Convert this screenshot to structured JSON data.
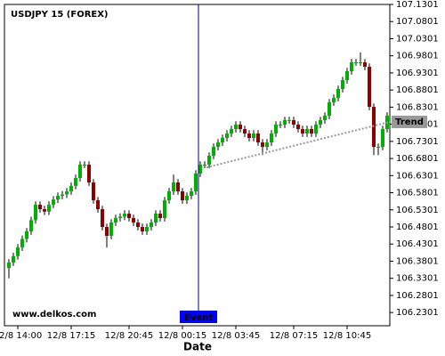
{
  "chart_data": {
    "type": "candlestick",
    "title": "USDJPY 15 (FOREX)",
    "source": "www.delkos.com",
    "x_label": "Date",
    "categories": [
      null,
      null,
      "12/8 14:00",
      null,
      null,
      null,
      null,
      null,
      null,
      null,
      null,
      null,
      null,
      null,
      "12/8 17:15",
      null,
      null,
      null,
      null,
      null,
      null,
      null,
      null,
      null,
      null,
      null,
      null,
      "12/8 20:45",
      null,
      null,
      null,
      null,
      null,
      null,
      null,
      null,
      null,
      null,
      null,
      "12/8 00:15",
      null,
      null,
      null,
      null,
      null,
      null,
      null,
      null,
      null,
      null,
      null,
      "12/8 03:45",
      null,
      null,
      null,
      null,
      null,
      null,
      null,
      null,
      null,
      null,
      null,
      null,
      "12/8 07:15",
      null,
      null,
      null,
      null,
      null,
      null,
      null,
      null,
      null,
      null,
      null,
      "12/8 10:45",
      null,
      null,
      null,
      null,
      null,
      null,
      null,
      null,
      null
    ],
    "open": [
      106.36,
      106.376,
      106.395,
      106.42,
      106.445,
      106.467,
      106.5,
      106.545,
      106.532,
      106.525,
      106.545,
      106.56,
      106.571,
      106.575,
      106.584,
      106.6,
      106.623,
      106.662,
      106.662,
      106.61,
      106.558,
      106.532,
      106.48,
      106.454,
      106.493,
      106.506,
      106.51,
      106.519,
      106.506,
      106.493,
      106.48,
      106.467,
      106.48,
      106.493,
      106.519,
      106.506,
      106.558,
      106.584,
      106.61,
      106.584,
      106.558,
      106.571,
      106.584,
      106.636,
      106.662,
      106.662,
      106.688,
      106.714,
      106.727,
      106.74,
      106.753,
      106.766,
      106.779,
      106.766,
      106.753,
      106.74,
      106.753,
      106.727,
      106.714,
      106.727,
      106.753,
      106.779,
      106.779,
      106.792,
      106.792,
      106.779,
      106.766,
      106.753,
      106.766,
      106.753,
      106.779,
      106.792,
      106.805,
      106.844,
      106.857,
      106.883,
      106.909,
      106.935,
      106.961,
      106.961,
      106.961,
      106.948,
      106.831,
      106.714,
      106.714,
      106.766
    ],
    "high": [
      106.386,
      106.405,
      106.43,
      106.455,
      106.477,
      106.51,
      106.555,
      106.555,
      106.542,
      106.555,
      106.57,
      106.581,
      106.585,
      106.594,
      106.61,
      106.633,
      106.672,
      106.672,
      106.672,
      106.62,
      106.568,
      106.542,
      106.49,
      106.503,
      106.516,
      106.52,
      106.529,
      106.529,
      106.516,
      106.503,
      106.49,
      106.49,
      106.503,
      106.529,
      106.529,
      106.568,
      106.594,
      106.633,
      106.62,
      106.594,
      106.581,
      106.594,
      106.646,
      106.672,
      106.672,
      106.698,
      106.724,
      106.737,
      106.75,
      106.763,
      106.776,
      106.789,
      106.789,
      106.776,
      106.763,
      106.763,
      106.763,
      106.737,
      106.737,
      106.763,
      106.789,
      106.789,
      106.802,
      106.802,
      106.802,
      106.789,
      106.776,
      106.776,
      106.776,
      106.789,
      106.802,
      106.815,
      106.854,
      106.867,
      106.893,
      106.919,
      106.945,
      106.971,
      106.971,
      106.99,
      106.971,
      106.958,
      106.841,
      106.724,
      106.776,
      106.815
    ],
    "low": [
      106.33,
      106.366,
      106.385,
      106.41,
      106.435,
      106.457,
      106.49,
      106.522,
      106.515,
      106.515,
      106.535,
      106.55,
      106.561,
      106.565,
      106.574,
      106.59,
      106.613,
      106.652,
      106.6,
      106.548,
      106.522,
      106.47,
      106.42,
      106.444,
      106.483,
      106.496,
      106.5,
      106.496,
      106.483,
      106.47,
      106.457,
      106.457,
      106.47,
      106.483,
      106.496,
      106.496,
      106.548,
      106.574,
      106.574,
      106.548,
      106.548,
      106.561,
      106.574,
      106.626,
      106.652,
      106.652,
      106.678,
      106.704,
      106.717,
      106.73,
      106.743,
      106.756,
      106.756,
      106.743,
      106.73,
      106.73,
      106.717,
      106.69,
      106.704,
      106.717,
      106.743,
      106.769,
      106.769,
      106.782,
      106.769,
      106.756,
      106.743,
      106.743,
      106.743,
      106.743,
      106.769,
      106.782,
      106.795,
      106.834,
      106.847,
      106.873,
      106.899,
      106.925,
      106.951,
      106.951,
      106.938,
      106.821,
      106.69,
      106.69,
      106.704,
      106.756
    ],
    "close": [
      106.376,
      106.395,
      106.42,
      106.445,
      106.467,
      106.5,
      106.545,
      106.532,
      106.525,
      106.545,
      106.56,
      106.571,
      106.575,
      106.584,
      106.6,
      106.623,
      106.662,
      106.662,
      106.61,
      106.558,
      106.532,
      106.48,
      106.454,
      106.493,
      106.506,
      106.51,
      106.519,
      106.506,
      106.493,
      106.48,
      106.467,
      106.48,
      106.493,
      106.519,
      106.506,
      106.558,
      106.584,
      106.61,
      106.584,
      106.558,
      106.571,
      106.584,
      106.636,
      106.662,
      106.662,
      106.688,
      106.714,
      106.727,
      106.74,
      106.753,
      106.766,
      106.779,
      106.766,
      106.753,
      106.74,
      106.753,
      106.727,
      106.714,
      106.727,
      106.753,
      106.779,
      106.779,
      106.792,
      106.792,
      106.779,
      106.766,
      106.753,
      106.766,
      106.753,
      106.779,
      106.792,
      106.805,
      106.844,
      106.857,
      106.883,
      106.909,
      106.935,
      106.961,
      106.961,
      106.961,
      106.948,
      106.831,
      106.714,
      106.714,
      106.766,
      106.805
    ],
    "up_color": "#00b000",
    "down_color": "#8b0000",
    "ylim": [
      106.1915,
      107.1301
    ],
    "yticks": [
      106.2301,
      106.2801,
      106.3301,
      106.3801,
      106.4301,
      106.4801,
      106.5301,
      106.5801,
      106.6301,
      106.6801,
      106.7301,
      106.7801,
      106.8301,
      106.8801,
      106.9301,
      106.9801,
      107.0301,
      107.0801,
      107.1301
    ],
    "event": {
      "label": "Event",
      "color": "#0000ff"
    },
    "trend": {
      "label": "Trend",
      "values": [
        106.654,
        106.787
      ],
      "color": "#999999"
    }
  }
}
